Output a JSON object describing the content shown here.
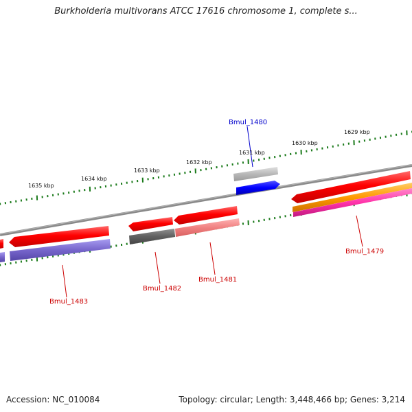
{
  "title": "Burkholderia multivorans ATCC 17616 chromosome 1, complete s...",
  "footer": {
    "accession": "Accession: NC_010084",
    "summary": "Topology: circular; Length: 3,448,466 bp; Genes: 3,214"
  },
  "scale_labels": [
    "1629 kbp",
    "1630 kbp",
    "1631 kbp",
    "1632 kbp",
    "1633 kbp",
    "1634 kbp",
    "1635 kbp"
  ],
  "gene_labels": [
    {
      "name": "Bmul_1480",
      "color": "#0000cc"
    },
    {
      "name": "Bmul_1479",
      "color": "#cc0000"
    },
    {
      "name": "Bmul_1481",
      "color": "#cc0000"
    },
    {
      "name": "Bmul_1482",
      "color": "#cc0000"
    },
    {
      "name": "Bmul_1483",
      "color": "#cc0000"
    }
  ],
  "colors": {
    "backbone": "#888888",
    "scale_ticks": "#1a7a1a",
    "cds": "#ff0000",
    "blue_feature": "#0000ff",
    "purple_feature": "#7766cc",
    "orange_feature": "#ff9900",
    "magenta_feature": "#ff33aa"
  }
}
